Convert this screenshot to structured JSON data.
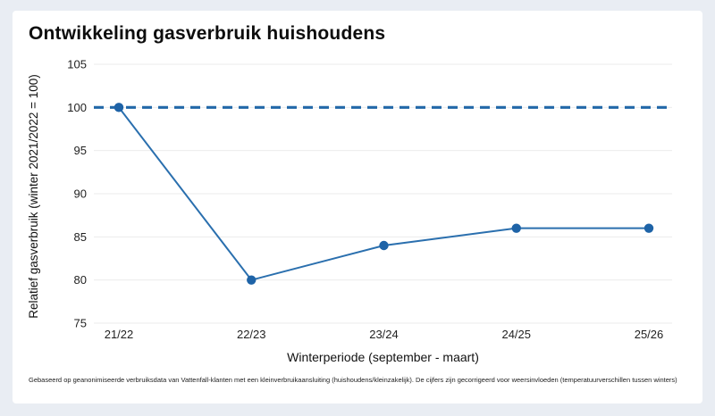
{
  "page": {
    "background": "#e9edf3",
    "card_background": "#ffffff"
  },
  "header": {
    "title": "Ontwikkeling gasverbruik huishoudens"
  },
  "chart_data": {
    "type": "line",
    "title": "Ontwikkeling gasverbruik huishoudens",
    "categories": [
      "21/22",
      "22/23",
      "23/24",
      "24/25",
      "25/26"
    ],
    "series": [
      {
        "name": "Relatief gasverbruik",
        "values": [
          100,
          80,
          84,
          86,
          86
        ]
      }
    ],
    "reference_line": {
      "value": 100,
      "style": "dashed",
      "color": "#2268a8"
    },
    "xlabel": "Winterperiode (september - maart)",
    "ylabel": "Relatief gasverbruik (winter 2021/2022 = 100)",
    "ylim": [
      75,
      105
    ],
    "yticks": [
      75,
      80,
      85,
      90,
      95,
      100,
      105
    ],
    "grid": "horizontal",
    "legend": "none",
    "line_color": "#2a6fae",
    "marker_color": "#1e63a7",
    "grid_color": "#ebebeb"
  },
  "footer": {
    "note": "Gebaseerd op geanonimiseerde verbruiksdata van Vattenfall-klanten met een kleinverbruikaansluiting (huishoudens/kleinzakelijk). De cijfers zijn gecorrigeerd voor weersinvloeden (temperatuurverschillen tussen winters)"
  }
}
